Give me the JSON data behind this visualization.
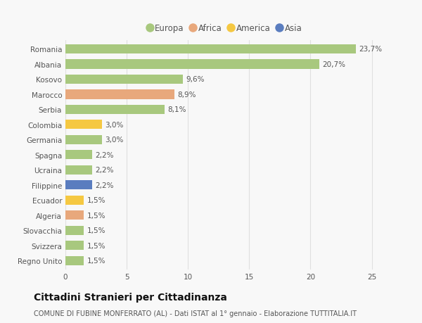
{
  "categories": [
    "Romania",
    "Albania",
    "Kosovo",
    "Marocco",
    "Serbia",
    "Colombia",
    "Germania",
    "Spagna",
    "Ucraina",
    "Filippine",
    "Ecuador",
    "Algeria",
    "Slovacchia",
    "Svizzera",
    "Regno Unito"
  ],
  "values": [
    23.7,
    20.7,
    9.6,
    8.9,
    8.1,
    3.0,
    3.0,
    2.2,
    2.2,
    2.2,
    1.5,
    1.5,
    1.5,
    1.5,
    1.5
  ],
  "labels": [
    "23,7%",
    "20,7%",
    "9,6%",
    "8,9%",
    "8,1%",
    "3,0%",
    "3,0%",
    "2,2%",
    "2,2%",
    "2,2%",
    "1,5%",
    "1,5%",
    "1,5%",
    "1,5%",
    "1,5%"
  ],
  "continents": [
    "Europa",
    "Europa",
    "Europa",
    "Africa",
    "Europa",
    "America",
    "Europa",
    "Europa",
    "Europa",
    "Asia",
    "America",
    "Africa",
    "Europa",
    "Europa",
    "Europa"
  ],
  "continent_colors": {
    "Europa": "#a8c87e",
    "Africa": "#e8a87c",
    "America": "#f5c842",
    "Asia": "#5a7dbf"
  },
  "legend_labels": [
    "Europa",
    "Africa",
    "America",
    "Asia"
  ],
  "legend_colors": [
    "#a8c87e",
    "#e8a87c",
    "#f5c842",
    "#5a7dbf"
  ],
  "title": "Cittadini Stranieri per Cittadinanza",
  "subtitle": "COMUNE DI FUBINE MONFERRATO (AL) - Dati ISTAT al 1° gennaio - Elaborazione TUTTITALIA.IT",
  "xlim": [
    0,
    26
  ],
  "xticks": [
    0,
    5,
    10,
    15,
    20,
    25
  ],
  "background_color": "#f8f8f8",
  "grid_color": "#e0e0e0",
  "bar_height": 0.62,
  "label_fontsize": 7.5,
  "tick_fontsize": 7.5,
  "title_fontsize": 10,
  "subtitle_fontsize": 7
}
